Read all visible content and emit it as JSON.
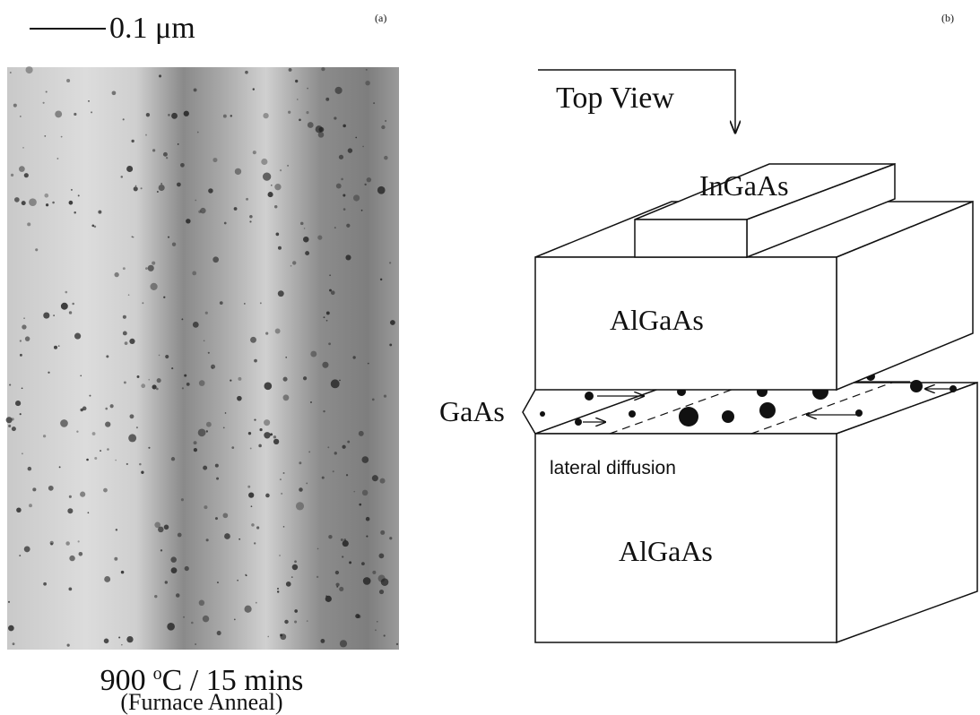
{
  "panel_a": {
    "label": "(a)",
    "scale_bar": "0.1 μm",
    "caption": {
      "temperature": "900",
      "degree": "o",
      "rest": "C / 15 mins",
      "note": "(Furnace Anneal)"
    }
  },
  "panel_b": {
    "label": "(b)",
    "top_view": "Top View",
    "layers": {
      "top_stripe": "InGaAs",
      "upper_barrier": "AlGaAs",
      "well": "GaAs",
      "lower_barrier": "AlGaAs"
    },
    "annotation": "lateral diffusion"
  }
}
